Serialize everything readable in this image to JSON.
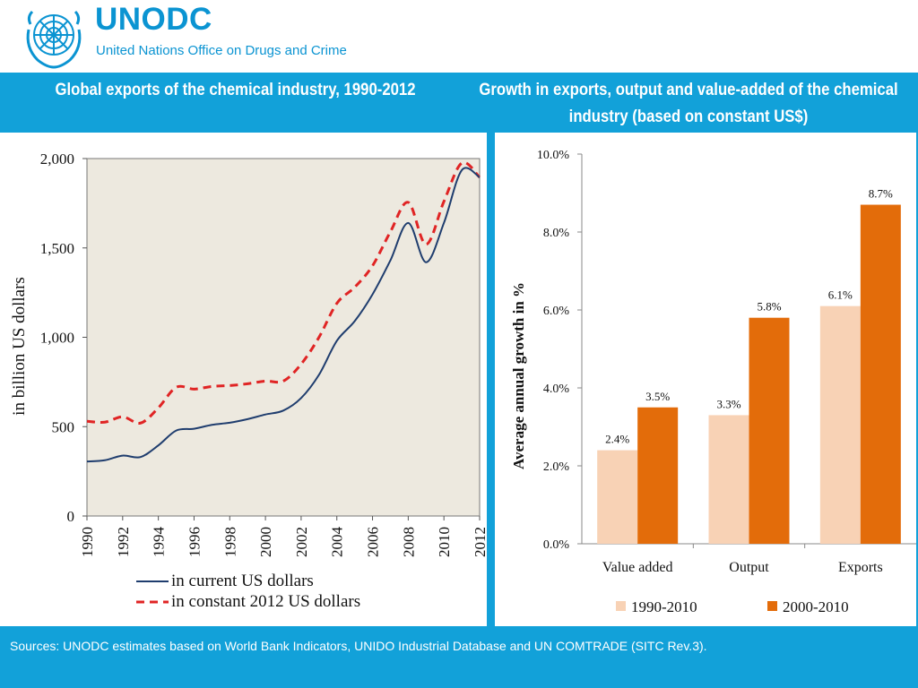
{
  "header": {
    "org_name": "UNODC",
    "org_full_name": "United Nations Office on Drugs and Crime",
    "logo_icon": "un-emblem-icon"
  },
  "titles": {
    "left": "Global exports of the chemical industry, 1990-2012",
    "right": "Growth in exports, output and value-added of the chemical industry (based on constant US$)"
  },
  "footer": {
    "sources": "Sources: UNODC estimates based on World Bank Indicators, UNIDO Industrial Database and UN COMTRADE (SITC Rev.3)."
  },
  "colors": {
    "accent": "#12a1d9",
    "current_line": "#1f3d6e",
    "constant_line": "#e02424",
    "bar_1990": "#f8d2b5",
    "bar_2000": "#e36c0a",
    "plot_bg": "#ede9df"
  },
  "chart_data": [
    {
      "type": "line",
      "title": "Global exports of the chemical industry, 1990-2012",
      "xlabel": "",
      "ylabel": "in billion US dollars",
      "x": [
        1990,
        1991,
        1992,
        1993,
        1994,
        1995,
        1996,
        1997,
        1998,
        1999,
        2000,
        2001,
        2002,
        2003,
        2004,
        2005,
        2006,
        2007,
        2008,
        2009,
        2010,
        2011,
        2012
      ],
      "xticks": [
        "1990",
        "1992",
        "1994",
        "1996",
        "1998",
        "2000",
        "2002",
        "2004",
        "2006",
        "2008",
        "2010",
        "2012"
      ],
      "yticks": [
        "0",
        "500",
        "1,000",
        "1,500",
        "2,000"
      ],
      "ylim": [
        0,
        2000
      ],
      "xlim": [
        1990,
        2012
      ],
      "grid": false,
      "series": [
        {
          "name": "in current US dollars",
          "style": "solid",
          "values": [
            305,
            312,
            338,
            330,
            395,
            478,
            488,
            510,
            522,
            542,
            568,
            590,
            660,
            790,
            980,
            1090,
            1240,
            1430,
            1640,
            1420,
            1640,
            1935,
            1895
          ]
        },
        {
          "name": "in constant 2012 US dollars",
          "style": "dashed",
          "values": [
            530,
            525,
            555,
            520,
            605,
            720,
            710,
            725,
            730,
            740,
            755,
            755,
            850,
            1000,
            1190,
            1280,
            1400,
            1590,
            1755,
            1520,
            1760,
            1975,
            1895
          ]
        }
      ]
    },
    {
      "type": "bar",
      "title": "Growth in exports, output and value-added of the chemical industry (based on constant US$)",
      "xlabel": "",
      "ylabel": "Average annual growth in %",
      "categories": [
        "Value added",
        "Output",
        "Exports"
      ],
      "yticks": [
        "0.0%",
        "2.0%",
        "4.0%",
        "6.0%",
        "8.0%",
        "10.0%"
      ],
      "ylim": [
        0,
        10
      ],
      "grid": false,
      "legend": "bottom",
      "series": [
        {
          "name": "1990-2010",
          "values": [
            2.4,
            3.3,
            6.1
          ],
          "labels": [
            "2.4%",
            "3.3%",
            "6.1%"
          ]
        },
        {
          "name": "2000-2010",
          "values": [
            3.5,
            5.8,
            8.7
          ],
          "labels": [
            "3.5%",
            "5.8%",
            "8.7%"
          ]
        }
      ]
    }
  ]
}
